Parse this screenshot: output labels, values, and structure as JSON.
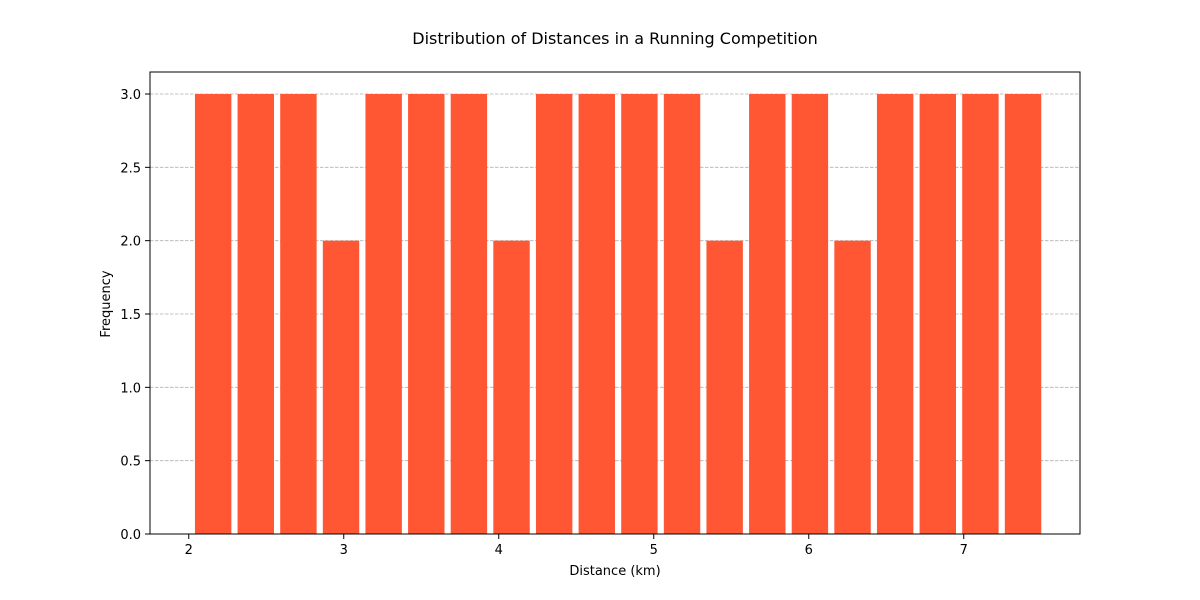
{
  "chart_data": {
    "type": "bar",
    "title": "Distribution of Distances in a Running Competition",
    "xlabel": "Distance (km)",
    "ylabel": "Frequency",
    "x_bin_start": 2.02,
    "x_bin_width": 0.275,
    "values": [
      3,
      3,
      3,
      2,
      3,
      3,
      3,
      2,
      3,
      3,
      3,
      3,
      2,
      3,
      3,
      2,
      3,
      3,
      3,
      3
    ],
    "xlim": [
      1.75,
      7.75
    ],
    "ylim": [
      0,
      3.15
    ],
    "xticks": [
      2,
      3,
      4,
      5,
      6,
      7
    ],
    "xtick_labels": [
      "2",
      "3",
      "4",
      "5",
      "6",
      "7"
    ],
    "yticks": [
      0,
      0.5,
      1.0,
      1.5,
      2.0,
      2.5,
      3.0
    ],
    "ytick_labels": [
      "0.0",
      "0.5",
      "1.0",
      "1.5",
      "2.0",
      "2.5",
      "3.0"
    ],
    "grid": "y-dashed",
    "bar_color": "#FF5733",
    "grid_color": "#b0b0b0"
  }
}
